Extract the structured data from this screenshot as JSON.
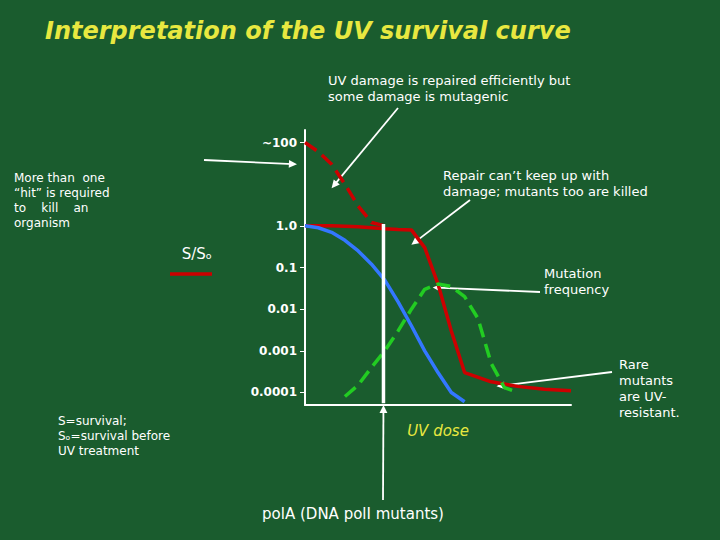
{
  "chart_data": {
    "type": "line",
    "title": "Interpretation of the UV survival curve",
    "xlabel": "UV dose",
    "ylabel": "S/Sₒ",
    "log": "y",
    "grid": false,
    "tick_labels": "y",
    "xlim": [
      0,
      10
    ],
    "ylim": [
      5e-05,
      200
    ],
    "yticks": [
      {
        "value": 100,
        "label": "~100"
      },
      {
        "value": 1.0,
        "label": "1.0"
      },
      0.1,
      0.01,
      0.001,
      0.0001
    ],
    "series": [
      {
        "color": "#cc0000",
        "line_style": "solid",
        "x": [
          0.0,
          0.5,
          1.0,
          1.5,
          2.0,
          2.5,
          3.0,
          3.5,
          4.0,
          4.5,
          5.0,
          5.5,
          6.0,
          7.0,
          8.0,
          9.0,
          10.0
        ],
        "values": [
          1.0,
          1.0,
          1.0,
          0.98,
          0.95,
          0.9,
          0.85,
          0.82,
          0.8,
          0.3,
          0.04,
          0.003,
          0.0003,
          0.00018,
          0.00014,
          0.00012,
          0.00011
        ]
      },
      {
        "color": "#cc0000",
        "line_style": "dashed",
        "x": [
          0.0,
          0.5,
          1.0,
          1.5,
          2.0,
          2.5,
          3.0
        ],
        "values": [
          100,
          60,
          30,
          10,
          3.0,
          1.2,
          1.0
        ]
      },
      {
        "color": "#3377ff",
        "line_style": "solid",
        "x": [
          0.0,
          0.5,
          1.0,
          1.5,
          2.0,
          2.5,
          3.0,
          3.5,
          4.0,
          4.5,
          5.0,
          5.5,
          6.0
        ],
        "values": [
          1.0,
          0.9,
          0.7,
          0.45,
          0.25,
          0.12,
          0.05,
          0.015,
          0.004,
          0.001,
          0.0003,
          0.0001,
          6e-05
        ]
      },
      {
        "color": "#22cc22",
        "line_style": "dashed",
        "x": [
          1.5,
          2.0,
          2.5,
          3.0,
          3.5,
          4.0,
          4.5,
          5.0,
          5.5,
          6.0,
          6.5,
          7.0,
          7.5,
          8.0
        ],
        "values": [
          8e-05,
          0.00015,
          0.0004,
          0.001,
          0.003,
          0.01,
          0.03,
          0.04,
          0.035,
          0.02,
          0.006,
          0.0005,
          0.00013,
          0.0001
        ]
      },
      {
        "color": "#ffffff",
        "line_style": "solid",
        "x": [
          2.95,
          2.95
        ],
        "values": [
          5.5e-05,
          1.1
        ]
      }
    ],
    "annotations": [
      {
        "text": "More than  one\n“hit” is required\nto    kill    an\norganism",
        "xy": [
          -0.3,
          30
        ]
      },
      {
        "text": "UV damage is repaired efficiently but\nsome damage is mutagenic",
        "xy": [
          1.0,
          8
        ]
      },
      {
        "text": "Repair can’t keep up with\ndamage; mutants too are killed",
        "xy": [
          4.0,
          0.35
        ]
      },
      {
        "text": "Mutation\nfrequency",
        "xy": [
          4.8,
          0.033
        ]
      },
      {
        "text": "Rare\nmutants\nare UV-\nresistant.",
        "xy": [
          7.2,
          0.00014
        ]
      },
      {
        "text": "S=survival;\nSₒ=survival before\nUV treatment"
      },
      {
        "text": "polA (DNA polI mutants)",
        "xy": [
          2.95,
          5e-05
        ]
      }
    ]
  }
}
